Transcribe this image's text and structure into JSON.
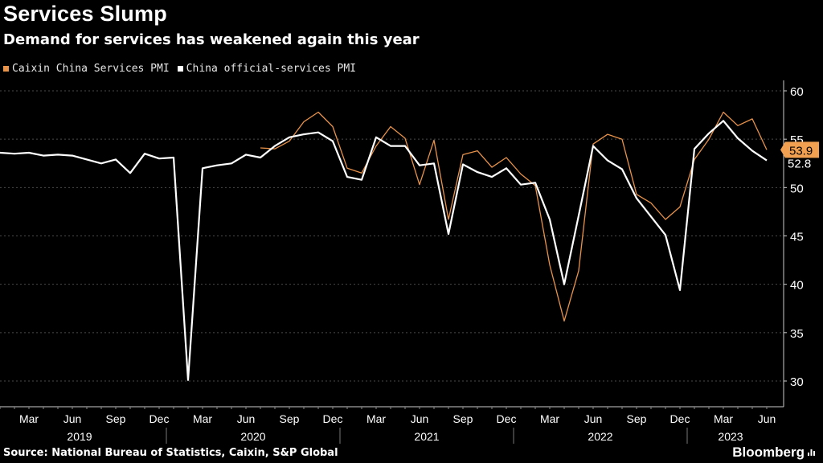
{
  "title": "Services Slump",
  "subtitle": "Demand for services has weakened again this year",
  "source": "Source: National Bureau of Statistics, Caixin, S&P Global",
  "brand": "Bloomberg",
  "brand_icon": "bar-chart-icon",
  "colors": {
    "background": "#000000",
    "caixin": "#e8924a",
    "official": "#ffffff",
    "grid": "#555555"
  },
  "chart_data": {
    "type": "line",
    "x": [
      "2019-01",
      "2019-02",
      "2019-03",
      "2019-04",
      "2019-05",
      "2019-06",
      "2019-07",
      "2019-08",
      "2019-09",
      "2019-10",
      "2019-11",
      "2019-12",
      "2020-01",
      "2020-02",
      "2020-03",
      "2020-04",
      "2020-05",
      "2020-06",
      "2020-07",
      "2020-08",
      "2020-09",
      "2020-10",
      "2020-11",
      "2020-12",
      "2021-01",
      "2021-02",
      "2021-03",
      "2021-04",
      "2021-05",
      "2021-06",
      "2021-07",
      "2021-08",
      "2021-09",
      "2021-10",
      "2021-11",
      "2021-12",
      "2022-01",
      "2022-02",
      "2022-03",
      "2022-04",
      "2022-05",
      "2022-06",
      "2022-07",
      "2022-08",
      "2022-09",
      "2022-10",
      "2022-11",
      "2022-12",
      "2023-01",
      "2023-02",
      "2023-03",
      "2023-04",
      "2023-05",
      "2023-06"
    ],
    "series": [
      {
        "name": "Caixin China Services PMI",
        "color": "#e8924a",
        "values": [
          null,
          null,
          null,
          null,
          null,
          null,
          null,
          null,
          null,
          null,
          null,
          null,
          null,
          null,
          null,
          null,
          null,
          null,
          54.1,
          54.0,
          54.8,
          56.8,
          57.8,
          56.3,
          52.0,
          51.5,
          54.3,
          56.3,
          55.1,
          50.3,
          54.9,
          46.7,
          53.4,
          53.8,
          52.1,
          53.1,
          51.4,
          50.2,
          42.0,
          36.2,
          41.4,
          54.5,
          55.5,
          55.0,
          49.3,
          48.4,
          46.7,
          48.0,
          52.9,
          55.0,
          57.8,
          56.4,
          57.1,
          53.9
        ]
      },
      {
        "name": "China official-services PMI",
        "color": "#ffffff",
        "values": [
          53.6,
          53.5,
          53.6,
          53.3,
          53.4,
          53.3,
          52.9,
          52.5,
          52.9,
          51.5,
          53.5,
          53.0,
          53.1,
          30.1,
          52.0,
          52.3,
          52.5,
          53.4,
          53.1,
          54.3,
          55.2,
          55.5,
          55.7,
          54.8,
          51.1,
          50.8,
          55.2,
          54.3,
          54.3,
          52.3,
          52.5,
          45.2,
          52.4,
          51.6,
          51.1,
          52.0,
          50.3,
          50.5,
          46.7,
          40.0,
          47.1,
          54.3,
          52.8,
          51.9,
          48.9,
          47.0,
          45.1,
          39.4,
          54.0,
          55.6,
          56.9,
          55.1,
          53.8,
          52.8
        ]
      }
    ],
    "y_ticks": [
      30,
      35,
      40,
      45,
      50,
      55,
      60
    ],
    "ylim": [
      28,
      61
    ],
    "y_axis_side": "right",
    "grid": true,
    "legend": "top-left",
    "x_month_labels": [
      "Mar",
      "Jun",
      "Sep",
      "Dec",
      "Mar",
      "Jun",
      "Sep",
      "Dec",
      "Mar",
      "Jun",
      "Sep",
      "Dec",
      "Mar",
      "Jun",
      "Sep",
      "Dec",
      "Mar",
      "Jun"
    ],
    "x_year_labels": [
      "2019",
      "2020",
      "2021",
      "2022",
      "2023"
    ],
    "end_labels": {
      "caixin": "53.9",
      "official": "52.8"
    }
  }
}
